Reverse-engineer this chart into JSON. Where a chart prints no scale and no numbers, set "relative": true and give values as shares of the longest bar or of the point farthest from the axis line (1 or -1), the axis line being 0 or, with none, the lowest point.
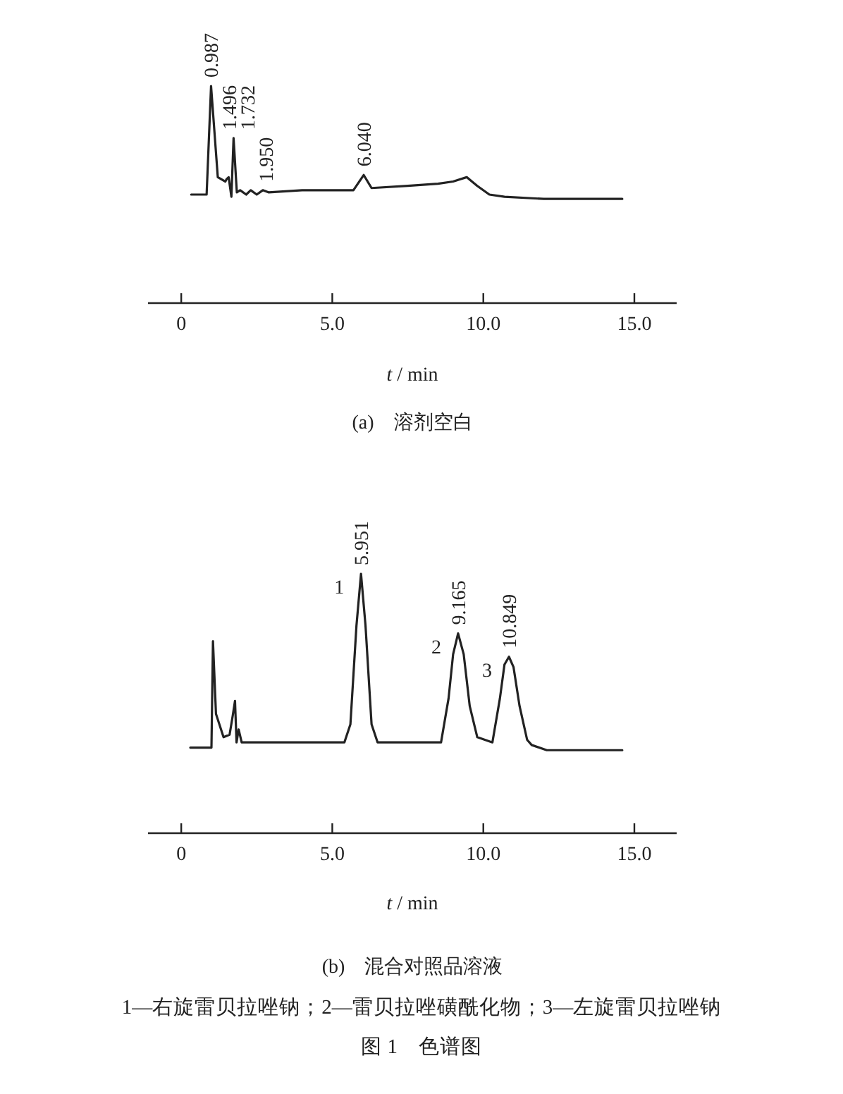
{
  "chart_data": [
    {
      "type": "line",
      "relative": true,
      "color": "#222222",
      "tick_labels": "x",
      "title": "(a)　溶剂空白",
      "xlabel": "*t* / min",
      "xlim": [
        -1.1,
        16.4
      ],
      "xticks": [
        0,
        {
          "value": 5,
          "label": "5.0"
        },
        {
          "value": 10,
          "label": "10.0"
        },
        {
          "value": 15,
          "label": "15.0"
        }
      ],
      "x": [
        0.33,
        0.84,
        0.987,
        1.21,
        1.46,
        1.496,
        1.57,
        1.66,
        1.732,
        1.84,
        1.95,
        2.15,
        2.3,
        2.5,
        2.7,
        2.9,
        4.0,
        5.7,
        6.04,
        6.3,
        7.5,
        8.5,
        9.0,
        9.45,
        9.8,
        10.2,
        10.7,
        12.0,
        14.6
      ],
      "values": [
        0.5,
        0.5,
        1,
        0.58,
        0.56,
        0.57,
        0.58,
        0.49,
        0.76,
        0.51,
        0.52,
        0.5,
        0.52,
        0.5,
        0.52,
        0.51,
        0.52,
        0.52,
        0.59,
        0.53,
        0.54,
        0.55,
        0.56,
        0.58,
        0.54,
        0.5,
        0.49,
        0.48,
        0.48
      ],
      "annotations": [
        {
          "text": "0.987",
          "x": 0.987,
          "y": 1
        },
        {
          "text": "1.496",
          "x": 1.496,
          "y": 0.57
        },
        {
          "text": "1.732",
          "x": 1.732,
          "y": 0.76
        },
        {
          "text": "1.950",
          "x": 1.95,
          "y": 0.52
        },
        {
          "text": "6.040",
          "x": 6.04,
          "y": 0.59
        }
      ]
    },
    {
      "type": "line",
      "relative": true,
      "color": "#222222",
      "tick_labels": "x",
      "title": "(b)　混合对照品溶液",
      "xlabel": "*t* / min",
      "xlim": [
        -1.1,
        16.4
      ],
      "xticks": [
        0,
        {
          "value": 5,
          "label": "5.0"
        },
        {
          "value": 10,
          "label": "10.0"
        },
        {
          "value": 15,
          "label": "15.0"
        }
      ],
      "x": [
        0.3,
        1.0,
        1.05,
        1.15,
        1.4,
        1.6,
        1.7,
        1.78,
        1.83,
        1.9,
        2.0,
        2.4,
        4.05,
        4.2,
        5.4,
        5.6,
        5.8,
        5.951,
        6.1,
        6.3,
        6.5,
        8.6,
        8.85,
        9.0,
        9.165,
        9.35,
        9.55,
        9.8,
        10.3,
        10.55,
        10.7,
        10.849,
        11.0,
        11.2,
        11.45,
        11.6,
        12.1,
        14.6
      ],
      "values": [
        0.33,
        0.33,
        0.74,
        0.46,
        0.37,
        0.38,
        0.45,
        0.51,
        0.35,
        0.4,
        0.35,
        0.35,
        0.35,
        0.35,
        0.35,
        0.42,
        0.8,
        1,
        0.8,
        0.42,
        0.35,
        0.35,
        0.52,
        0.69,
        0.77,
        0.69,
        0.49,
        0.37,
        0.35,
        0.52,
        0.65,
        0.68,
        0.64,
        0.49,
        0.36,
        0.34,
        0.32,
        0.32
      ],
      "annotations": [
        {
          "text": "5.951",
          "x": 5.951,
          "y": 1
        },
        {
          "text": "9.165",
          "x": 9.165,
          "y": 0.77
        },
        {
          "text": "10.849",
          "x": 10.849,
          "y": 0.68
        },
        {
          "text": "1",
          "x": 5.951,
          "y": 1
        },
        {
          "text": "2",
          "x": 9.165,
          "y": 0.77
        },
        {
          "text": "3",
          "x": 10.849,
          "y": 0.68
        },
        "1—右旋雷贝拉唑钠；2—雷贝拉唑磺酰化物；3—左旋雷贝拉唑钠",
        "图 1　色谱图"
      ]
    }
  ]
}
